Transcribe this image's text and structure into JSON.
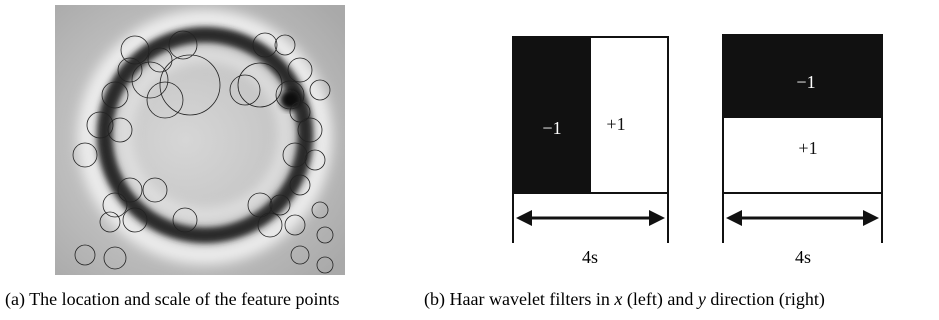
{
  "figure": {
    "panel_a": {
      "caption": "(a) The location and scale of the feature points"
    },
    "panel_b": {
      "caption_parts": [
        "(b) Haar wavelet filters in ",
        "x",
        " (left) and ",
        "y",
        " direction (right)"
      ],
      "filters": [
        {
          "labels": [
            "−1",
            "+1"
          ],
          "width_label": "4s"
        },
        {
          "labels": [
            "−1",
            "+1"
          ],
          "width_label": "4s"
        }
      ]
    }
  }
}
